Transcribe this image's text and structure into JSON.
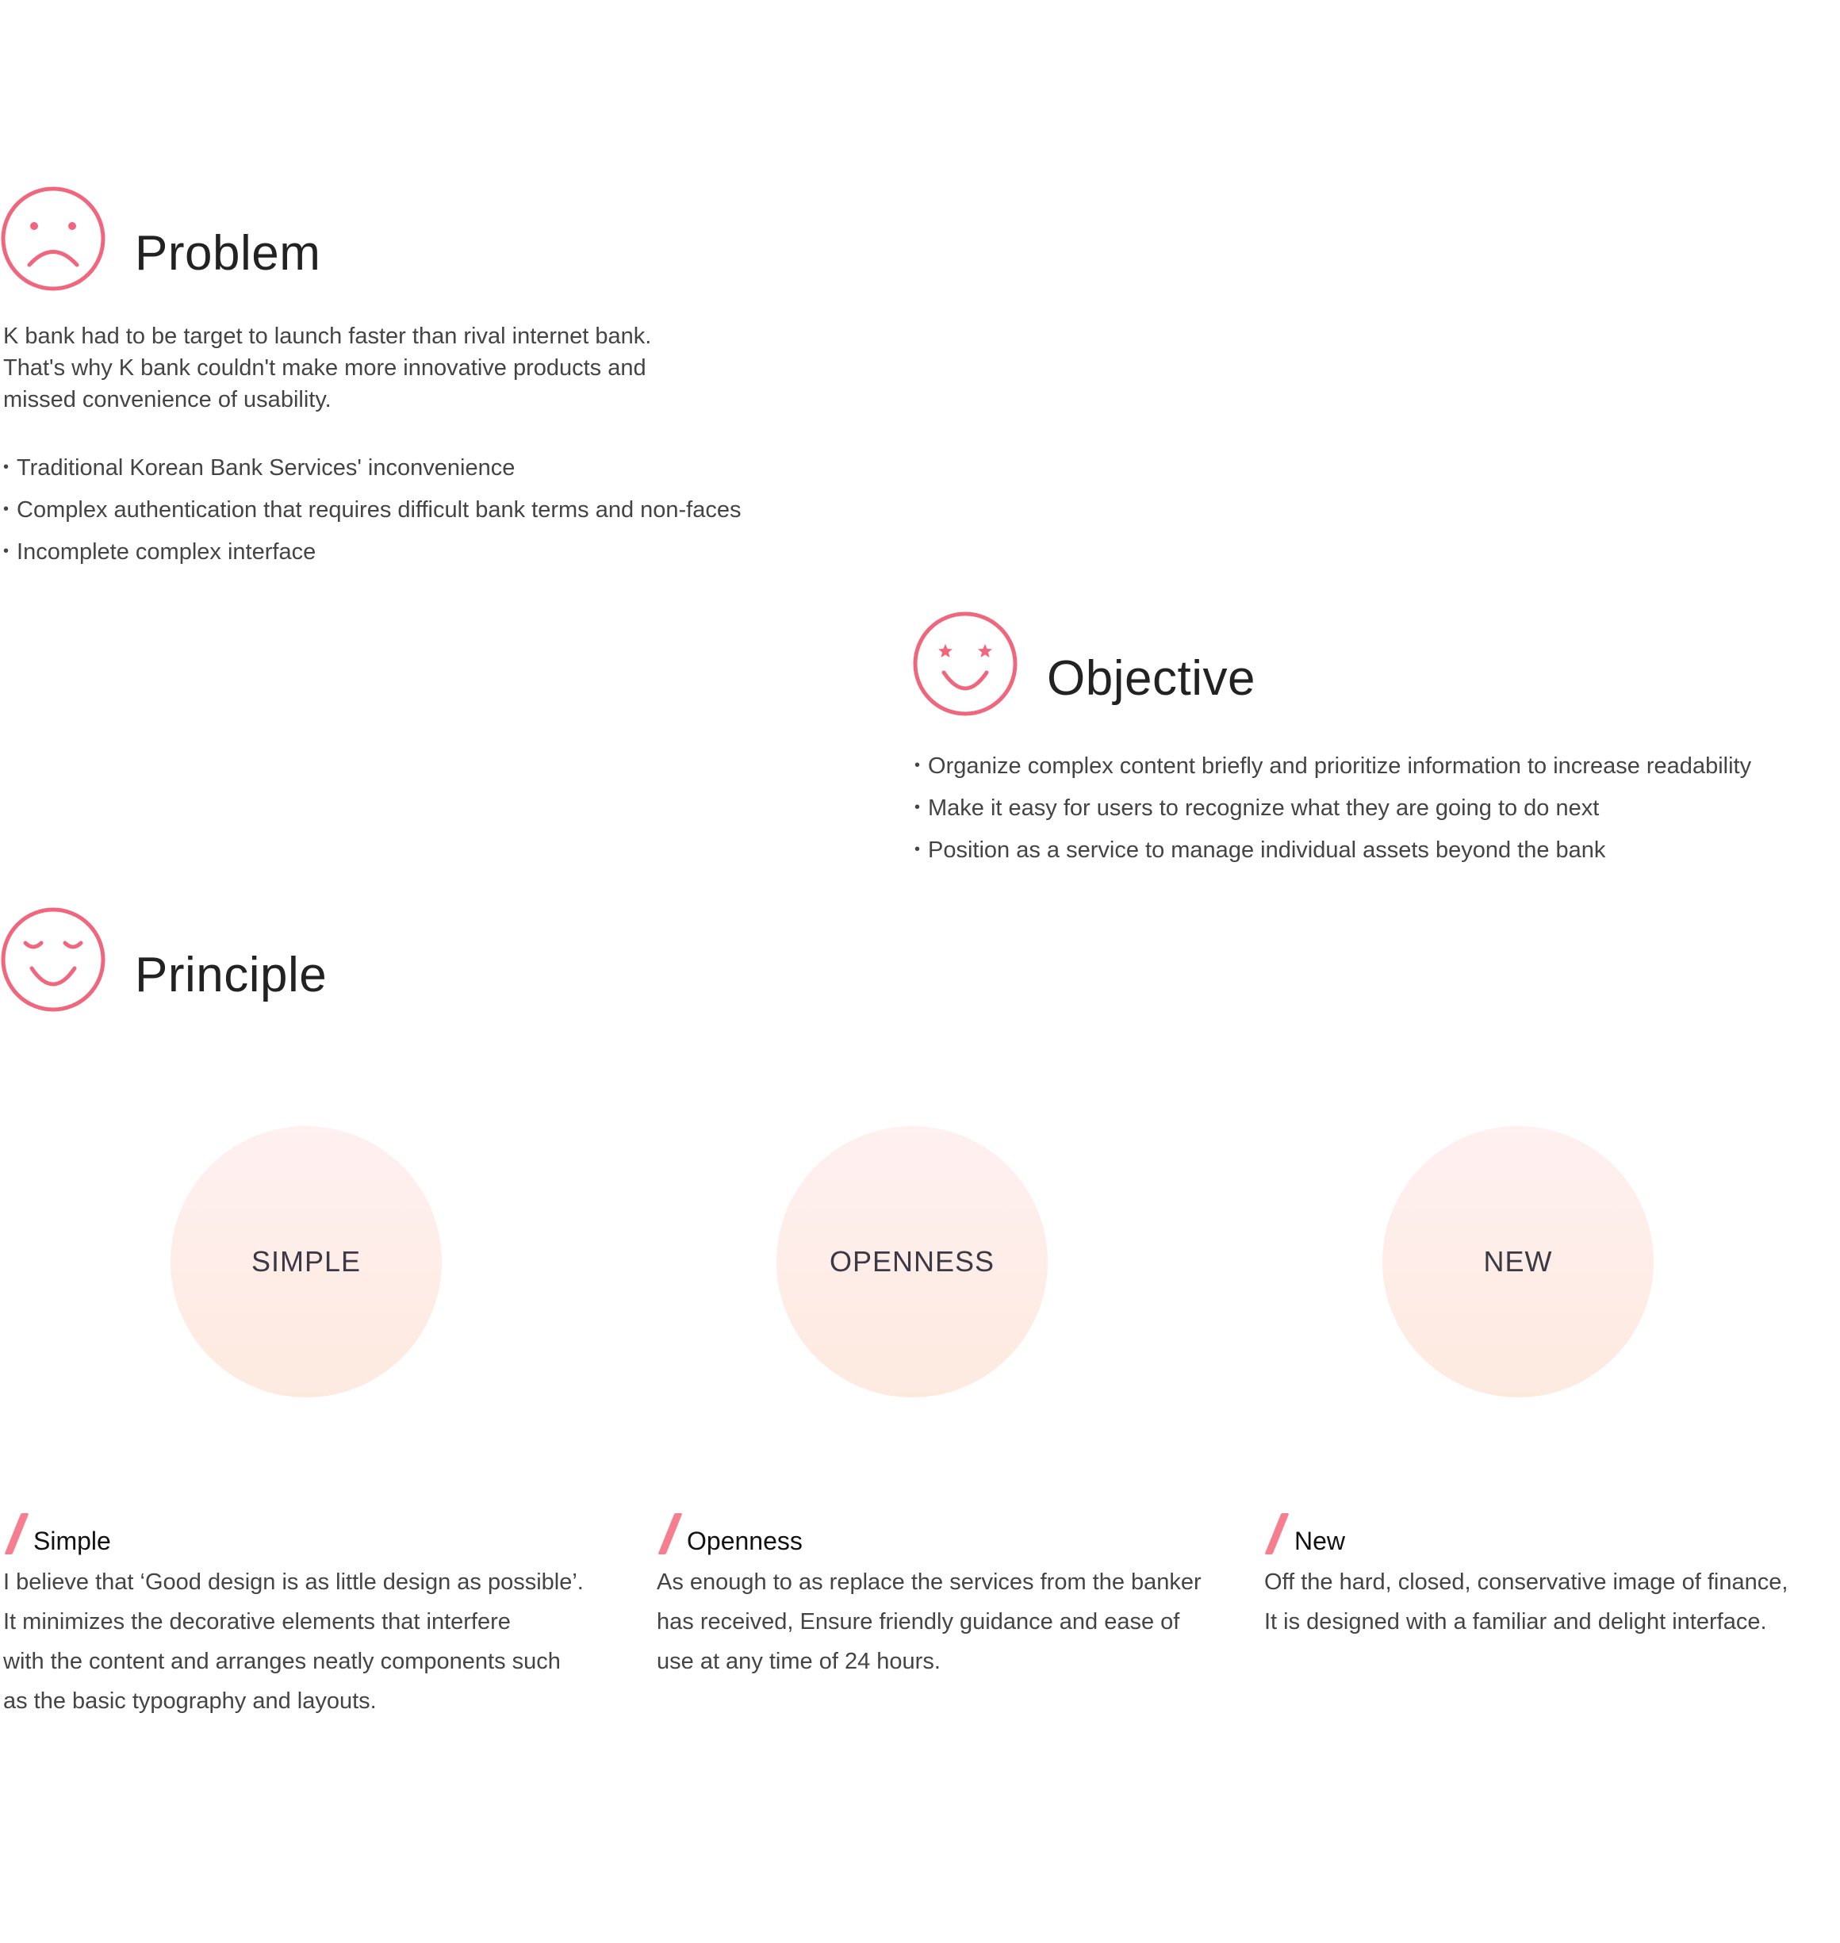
{
  "colors": {
    "accent": "#f0677d",
    "slash": "#f77e8e",
    "circle_top": "#fff0f1",
    "circle_bottom": "#fdeadf",
    "text": "#444444"
  },
  "problem": {
    "icon": "sad-face-icon",
    "title": "Problem",
    "paragraph": [
      "K bank had to be target to launch faster than rival internet bank.",
      "That's why K bank couldn't make more innovative products and",
      "missed convenience of usability."
    ],
    "bullets": [
      "Traditional Korean Bank Services' inconvenience",
      "Complex authentication that requires difficult bank terms and non-faces",
      "Incomplete complex interface"
    ]
  },
  "objective": {
    "icon": "starry-eyed-smile-icon",
    "title": "Objective",
    "bullets": [
      "Organize complex content briefly and prioritize information to increase readability",
      "Make it easy for users to recognize what they are going to do next",
      "Position as a service to manage individual assets beyond the bank"
    ]
  },
  "principle": {
    "icon": "content-smile-icon",
    "title": "Principle",
    "circles": [
      "SIMPLE",
      "OPENNESS",
      "NEW"
    ],
    "items": [
      {
        "title": "Simple",
        "lines": [
          "I believe that ‘Good design is as little design as possible’.",
          "It minimizes the decorative elements that interfere",
          "with the content and arranges neatly components such",
          "as the basic typography and layouts."
        ]
      },
      {
        "title": "Openness",
        "lines": [
          "As enough to as replace the services from the banker",
          "has received, Ensure friendly guidance and ease of",
          "use at any time of 24 hours."
        ]
      },
      {
        "title": "New",
        "lines": [
          "Off the hard, closed, conservative image of finance,",
          "It is designed with a familiar and delight interface."
        ]
      }
    ]
  }
}
